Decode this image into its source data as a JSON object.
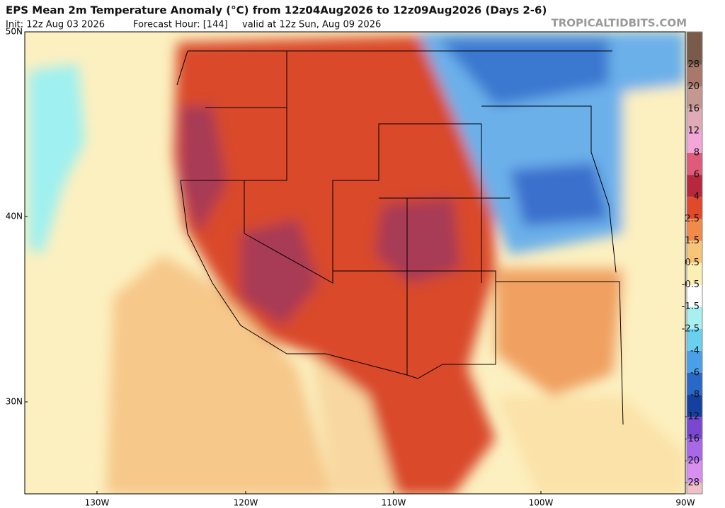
{
  "header": {
    "title": "EPS Mean 2m Temperature Anomaly (°C) from 12z04Aug2026 to 12z09Aug2026 (Days 2-6)",
    "init": "Init: 12z Aug 03 2026",
    "forecast_hour": "Forecast Hour: [144]",
    "valid": "valid at 12z Sun, Aug 09 2026",
    "watermark": "TROPICALTIDBITS.COM"
  },
  "map": {
    "lat_labels": [
      "50N",
      "40N",
      "30N"
    ],
    "lon_labels": [
      "130W",
      "120W",
      "110W",
      "100W",
      "90W"
    ]
  },
  "colorbar": {
    "labels": [
      28,
      20,
      16,
      12,
      8,
      6,
      4,
      2.5,
      1.5,
      0.5,
      -0.5,
      -1.5,
      -2.5,
      -4,
      -6,
      -8,
      -12,
      -16,
      -20,
      -28
    ],
    "colors": [
      "#7a5a48",
      "#a8786a",
      "#c49890",
      "#e0aab8",
      "#f4a6d8",
      "#e05a7a",
      "#b8283c",
      "#e04a2a",
      "#f28a4a",
      "#f8c478",
      "#fcefb4",
      "#ffffff",
      "#a8f0f0",
      "#6ad0f0",
      "#4aa0e8",
      "#2868c8",
      "#1440a0",
      "#7a48d0",
      "#a868e8",
      "#d890f0",
      "#f0c0c8"
    ]
  }
}
